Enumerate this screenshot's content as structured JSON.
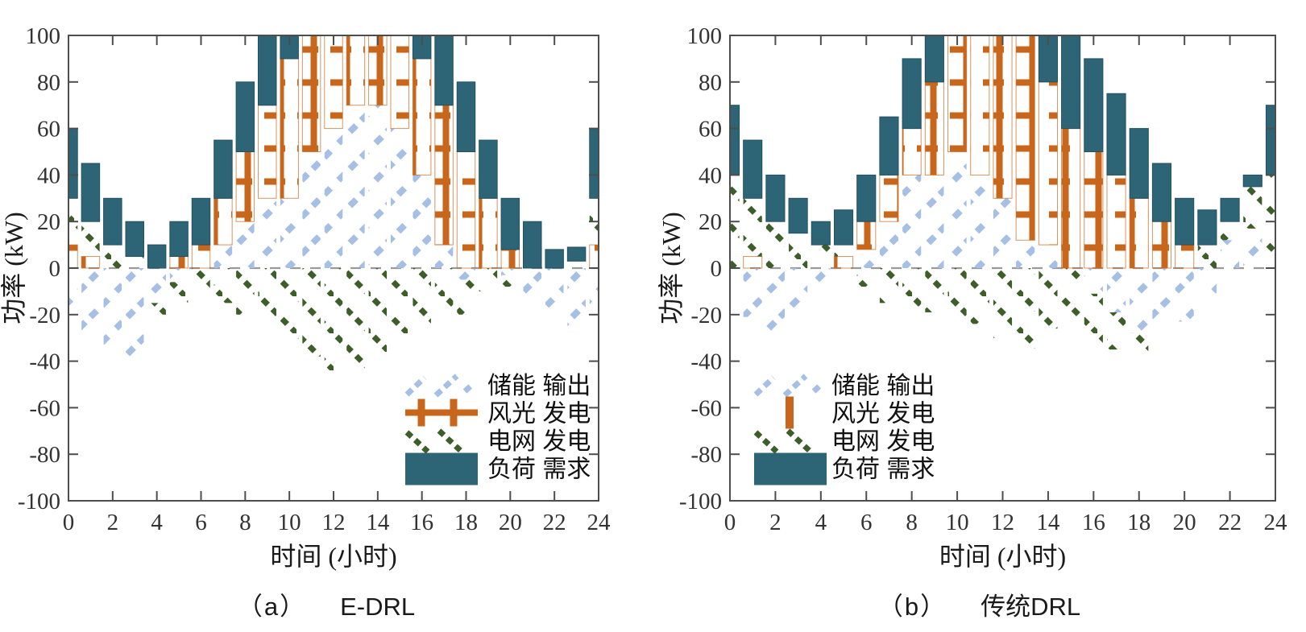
{
  "figure": {
    "background": "#ffffff",
    "colors": {
      "storage": "#A6BFE4",
      "renewable": "#C8661B",
      "grid": "#3E5E29",
      "load": "#2D6577",
      "axis": "#4d4d4d",
      "tick_text": "#333333",
      "zero_line": "#9a9a9a"
    }
  },
  "chart_data": [
    {
      "type": "bar",
      "stacked": true,
      "caption_index": "（a）",
      "caption_label": "E-DRL",
      "xlabel": "时间 (小时)",
      "ylabel": "功率 (kW)",
      "xlim": [
        0,
        24
      ],
      "ylim": [
        -100,
        100
      ],
      "xticks": [
        0,
        2,
        4,
        6,
        8,
        10,
        12,
        14,
        16,
        18,
        20,
        22,
        24
      ],
      "yticks": [
        -100,
        -80,
        -60,
        -40,
        -20,
        0,
        20,
        40,
        60,
        80,
        100
      ],
      "grid_lines": false,
      "legend_position": "lower-right-inside",
      "x": [
        0,
        1,
        2,
        3,
        4,
        5,
        6,
        7,
        8,
        9,
        10,
        11,
        12,
        13,
        14,
        15,
        16,
        17,
        18,
        19,
        20,
        21,
        22,
        23,
        24
      ],
      "series": [
        {
          "key": "storage",
          "name": "储能 输出",
          "hatch": "diag-up",
          "color": "#A6BFE4",
          "values": [
            -24,
            -28,
            -33,
            -40,
            -15,
            -6,
            0,
            10,
            20,
            30,
            30,
            50,
            60,
            70,
            70,
            60,
            40,
            10,
            -5,
            0,
            -3,
            -14,
            -20,
            -25,
            -20
          ]
        },
        {
          "key": "renewable",
          "name": "风光 发电",
          "hatch": "cross",
          "color": "#C8661B",
          "values": [
            10,
            5,
            0,
            0,
            0,
            5,
            10,
            20,
            30,
            40,
            60,
            55,
            50,
            40,
            40,
            45,
            50,
            60,
            50,
            30,
            8,
            0,
            0,
            0,
            10
          ]
        },
        {
          "key": "grid",
          "name": "电网 发电",
          "hatch": "diag-down",
          "color": "#3E5E29",
          "values": [
            20,
            15,
            10,
            5,
            -5,
            -12,
            -13,
            -15,
            -20,
            -25,
            -31,
            -38,
            -44,
            -44,
            -36,
            -30,
            -25,
            -20,
            -15,
            -10,
            -5,
            0,
            0,
            3,
            20
          ]
        },
        {
          "key": "load",
          "name": "负荷 需求",
          "hatch": "solid",
          "color": "#2D6577",
          "values": [
            30,
            25,
            20,
            15,
            10,
            15,
            20,
            25,
            30,
            30,
            30,
            30,
            30,
            30,
            30,
            30,
            30,
            30,
            30,
            25,
            22,
            20,
            8,
            6,
            30
          ]
        }
      ],
      "legend": [
        {
          "label": "储能 输出",
          "marker": "hatch-up"
        },
        {
          "label": "风光 发电",
          "marker": "cross"
        },
        {
          "label": "电网 发电",
          "marker": "hatch-down"
        },
        {
          "label": "负荷 需求",
          "marker": "solid"
        }
      ]
    },
    {
      "type": "bar",
      "stacked": true,
      "caption_index": "（b）",
      "caption_label": "传统DRL",
      "xlabel": "时间 (小时)",
      "ylabel": "功率 (kW)",
      "xlim": [
        0,
        24
      ],
      "ylim": [
        -100,
        100
      ],
      "xticks": [
        0,
        2,
        4,
        6,
        8,
        10,
        12,
        14,
        16,
        18,
        20,
        22,
        24
      ],
      "yticks": [
        -100,
        -80,
        -60,
        -40,
        -20,
        0,
        20,
        40,
        60,
        80,
        100
      ],
      "grid_lines": false,
      "legend_position": "lower-left-inside",
      "x": [
        0,
        1,
        2,
        3,
        4,
        5,
        6,
        7,
        8,
        9,
        10,
        11,
        12,
        13,
        14,
        15,
        16,
        17,
        18,
        19,
        20,
        21,
        22,
        23,
        24
      ],
      "series": [
        {
          "key": "storage",
          "name": "储能 输出",
          "hatch": "diag-up",
          "color": "#A6BFE4",
          "values": [
            -3,
            -21,
            -31,
            -19,
            -6,
            -3,
            8,
            20,
            40,
            40,
            50,
            40,
            30,
            12,
            10,
            0,
            -11,
            -19,
            -28,
            -23,
            -23,
            -12,
            12,
            17,
            0
          ]
        },
        {
          "key": "renewable",
          "name": "风光 发电",
          "hatch": "cross",
          "color": "#C8661B",
          "values": [
            0,
            5,
            0,
            0,
            0,
            5,
            12,
            20,
            20,
            40,
            55,
            70,
            80,
            95,
            70,
            60,
            50,
            40,
            30,
            20,
            10,
            0,
            0,
            0,
            0
          ]
        },
        {
          "key": "grid",
          "name": "电网 发电",
          "hatch": "diag-down",
          "color": "#3E5E29",
          "values": [
            40,
            25,
            20,
            15,
            10,
            5,
            -8,
            -15,
            -17,
            -19,
            -22,
            -24,
            -30,
            -35,
            -26,
            -21,
            -24,
            -16,
            -9,
            0,
            0,
            10,
            8,
            18,
            40
          ]
        },
        {
          "key": "load",
          "name": "负荷 需求",
          "hatch": "solid",
          "color": "#2D6577",
          "values": [
            30,
            25,
            20,
            15,
            10,
            15,
            20,
            25,
            30,
            20,
            30,
            30,
            30,
            30,
            20,
            40,
            40,
            35,
            30,
            25,
            20,
            15,
            10,
            5,
            30
          ]
        }
      ],
      "legend": [
        {
          "label": "储能 输出",
          "marker": "hatch-up"
        },
        {
          "label": "风光 发电",
          "marker": "vbar"
        },
        {
          "label": "电网 发电",
          "marker": "hatch-down"
        },
        {
          "label": "负荷 需求",
          "marker": "solid"
        }
      ]
    }
  ]
}
